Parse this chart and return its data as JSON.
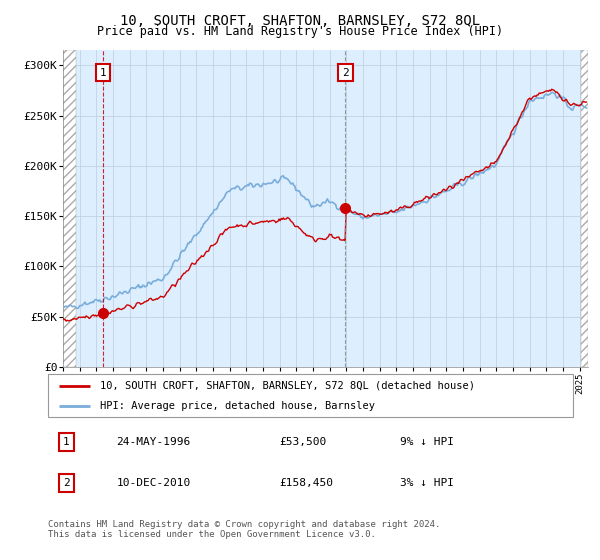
{
  "title1": "10, SOUTH CROFT, SHAFTON, BARNSLEY, S72 8QL",
  "title2": "Price paid vs. HM Land Registry's House Price Index (HPI)",
  "ylabel_ticks": [
    "£0",
    "£50K",
    "£100K",
    "£150K",
    "£200K",
    "£250K",
    "£300K"
  ],
  "ytick_vals": [
    0,
    50000,
    100000,
    150000,
    200000,
    250000,
    300000
  ],
  "ylim": [
    0,
    315000
  ],
  "xlim_start": 1994.0,
  "xlim_end": 2025.5,
  "purchase1_date": 1996.39,
  "purchase1_price": 53500,
  "purchase2_date": 2010.94,
  "purchase2_price": 158450,
  "legend_line1": "10, SOUTH CROFT, SHAFTON, BARNSLEY, S72 8QL (detached house)",
  "legend_line2": "HPI: Average price, detached house, Barnsley",
  "table_row1_num": "1",
  "table_row1_date": "24-MAY-1996",
  "table_row1_price": "£53,500",
  "table_row1_hpi": "9% ↓ HPI",
  "table_row2_num": "2",
  "table_row2_date": "10-DEC-2010",
  "table_row2_price": "£158,450",
  "table_row2_hpi": "3% ↓ HPI",
  "footer": "Contains HM Land Registry data © Crown copyright and database right 2024.\nThis data is licensed under the Open Government Licence v3.0.",
  "hpi_color": "#7aadda",
  "price_color": "#cc0000",
  "bg_color": "#ddeeff",
  "grid_color": "#bbccdd"
}
